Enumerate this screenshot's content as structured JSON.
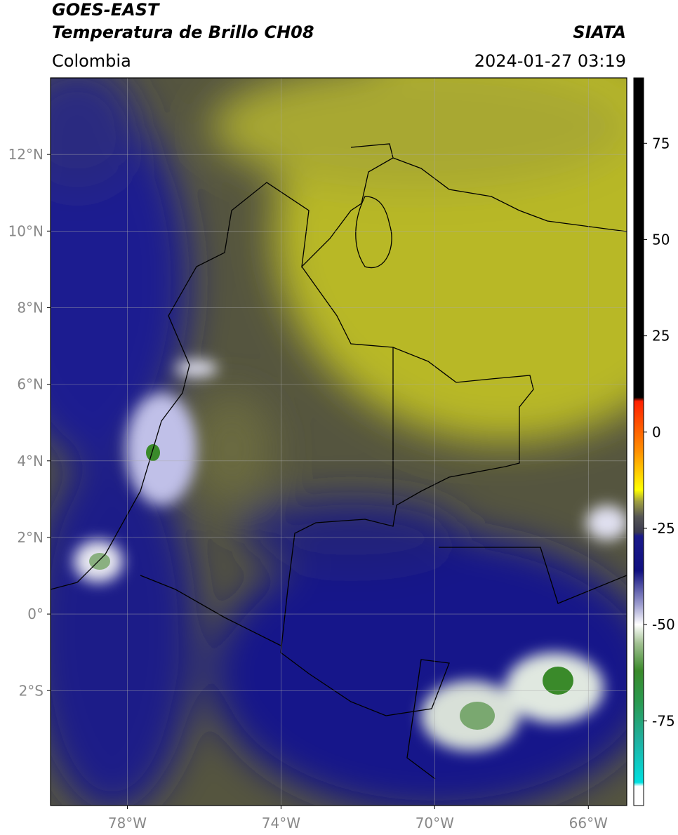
{
  "chart_data": {
    "type": "map",
    "title": "GOES-EAST",
    "subtitle": "Temperatura de Brillo CH08",
    "source": "SIATA",
    "region": "Colombia",
    "datetime": "2024-01-27 03:19",
    "xlim": [
      -80,
      -65
    ],
    "ylim": [
      -5,
      14
    ],
    "xticks": [
      {
        "value": -78,
        "label": "78°W"
      },
      {
        "value": -74,
        "label": "74°W"
      },
      {
        "value": -70,
        "label": "70°W"
      },
      {
        "value": -66,
        "label": "66°W"
      }
    ],
    "yticks": [
      {
        "value": 12,
        "label": "12°N"
      },
      {
        "value": 10,
        "label": "10°N"
      },
      {
        "value": 8,
        "label": "8°N"
      },
      {
        "value": 6,
        "label": "6°N"
      },
      {
        "value": 4,
        "label": "4°N"
      },
      {
        "value": 2,
        "label": "2°N"
      },
      {
        "value": 0,
        "label": "0°"
      },
      {
        "value": -2,
        "label": "2°S"
      }
    ],
    "grid": true,
    "colorbar": {
      "clim": [
        -97,
        92
      ],
      "ticks": [
        75,
        50,
        25,
        0,
        -25,
        -50,
        -75
      ],
      "colormap": [
        {
          "value": 92,
          "color": "#000000"
        },
        {
          "value": 9,
          "color": "#000000"
        },
        {
          "value": 8,
          "color": "#ff2000"
        },
        {
          "value": -5,
          "color": "#ff9000"
        },
        {
          "value": -15,
          "color": "#ffff00"
        },
        {
          "value": -18,
          "color": "#a0a040"
        },
        {
          "value": -22,
          "color": "#555555"
        },
        {
          "value": -26,
          "color": "#3a3a50"
        },
        {
          "value": -27,
          "color": "#1a1a8a"
        },
        {
          "value": -36,
          "color": "#101080"
        },
        {
          "value": -45,
          "color": "#a0a0d0"
        },
        {
          "value": -50,
          "color": "#ffffff"
        },
        {
          "value": -55,
          "color": "#a0c090"
        },
        {
          "value": -62,
          "color": "#3a8a2a"
        },
        {
          "value": -70,
          "color": "#2a9a50"
        },
        {
          "value": -80,
          "color": "#20b0a0"
        },
        {
          "value": -91,
          "color": "#00e0e0"
        },
        {
          "value": -92,
          "color": "#ffffff"
        },
        {
          "value": -97,
          "color": "#ffffff"
        }
      ]
    }
  }
}
